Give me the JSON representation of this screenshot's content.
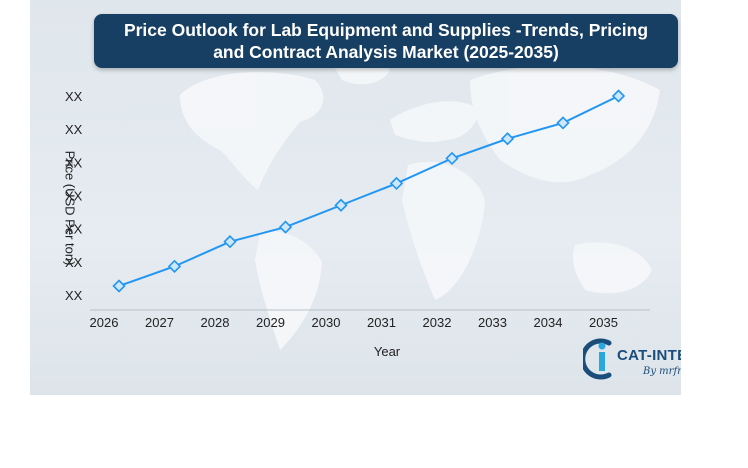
{
  "title": "Price Outlook for Lab Equipment and Supplies -Trends, Pricing and Contract Analysis Market (2025-2035)",
  "colors": {
    "title_bg": "#173f63",
    "line": "#2196f3",
    "marker_fill": "#cfe7fb",
    "map": "#f4f7f9"
  },
  "logo": {
    "name": "CAT-INTEL",
    "sub": "By mrfr",
    "icon": "cat-intel-logo-icon"
  },
  "chart_data": {
    "type": "line",
    "title": "Price Outlook for Lab Equipment and Supplies -Trends, Pricing and Contract Analysis Market (2025-2035)",
    "xlabel": "Year",
    "ylabel": "Price (USD Per ton)",
    "categories": [
      "2026",
      "2027",
      "2028",
      "2029",
      "2030",
      "2031",
      "2032",
      "2033",
      "2034",
      "2035"
    ],
    "y_tick_labels": [
      "XX",
      "XX",
      "XX",
      "XX",
      "XX",
      "XX",
      "XX"
    ],
    "ylim": [
      0,
      6
    ],
    "values": [
      0,
      0.62,
      1.4,
      1.86,
      2.55,
      3.24,
      4.03,
      4.65,
      5.15,
      6.0
    ],
    "grid": false,
    "legend": "none"
  }
}
